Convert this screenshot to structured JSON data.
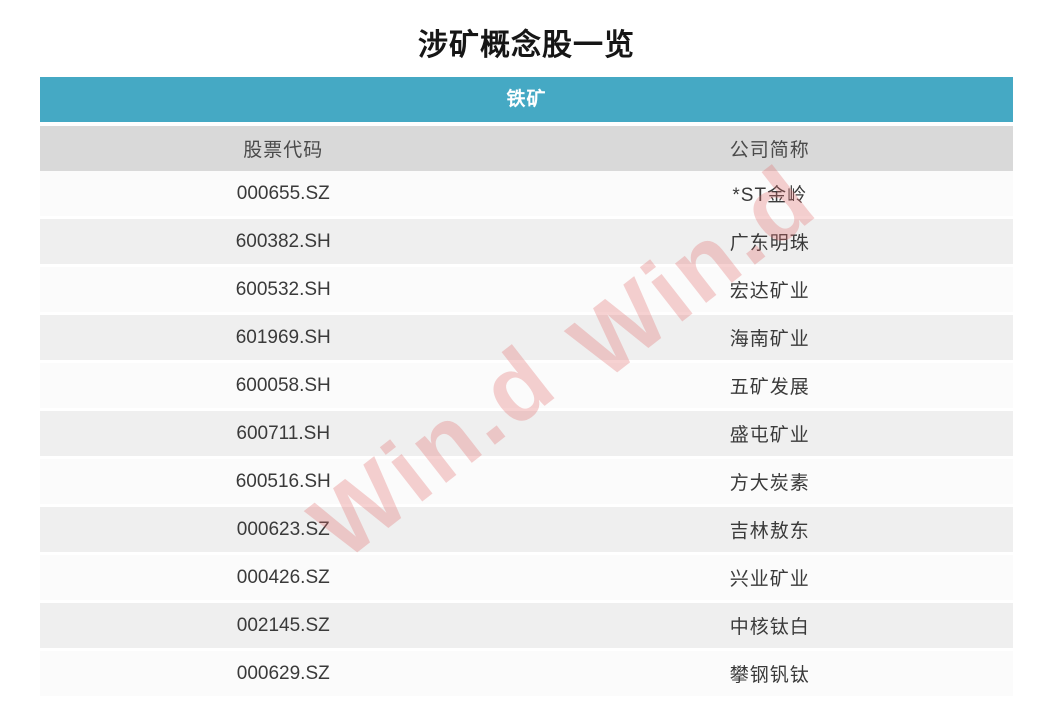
{
  "page": {
    "title": "涉矿概念股一览"
  },
  "table": {
    "group_header": "铁矿",
    "accent_color": "#45a9c4",
    "header_row_color": "#d9d9d9",
    "columns": [
      "股票代码",
      "公司简称"
    ],
    "rows": [
      {
        "code": "000655.SZ",
        "name": "*ST金岭"
      },
      {
        "code": "600382.SH",
        "name": "广东明珠"
      },
      {
        "code": "600532.SH",
        "name": "宏达矿业"
      },
      {
        "code": "601969.SH",
        "name": "海南矿业"
      },
      {
        "code": "600058.SH",
        "name": "五矿发展"
      },
      {
        "code": "600711.SH",
        "name": "盛屯矿业"
      },
      {
        "code": "600516.SH",
        "name": "方大炭素"
      },
      {
        "code": "000623.SZ",
        "name": "吉林敖东"
      },
      {
        "code": "000426.SZ",
        "name": "兴业矿业"
      },
      {
        "code": "002145.SZ",
        "name": "中核钛白"
      },
      {
        "code": "000629.SZ",
        "name": "攀钢钒钛"
      }
    ]
  },
  "watermark": {
    "text": "Win.d",
    "color": "#e26a6a",
    "opacity": 0.3
  }
}
